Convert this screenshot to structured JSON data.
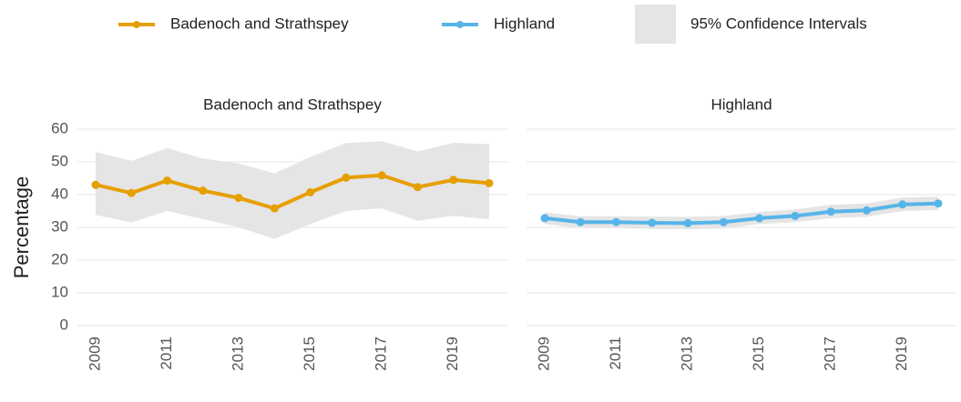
{
  "chart_data": {
    "type": "line",
    "y_label": "Percentage",
    "ci_label": "95% Confidence Intervals",
    "ci_color": "#e5e5e5",
    "x": [
      2009,
      2010,
      2011,
      2012,
      2013,
      2014,
      2015,
      2016,
      2017,
      2018,
      2019,
      2020
    ],
    "xticks": [
      2009,
      2011,
      2013,
      2015,
      2017,
      2019
    ],
    "ylim": [
      0,
      60
    ],
    "yticks": [
      0,
      10,
      20,
      30,
      40,
      50,
      60
    ],
    "grid": true,
    "facet": true,
    "series": [
      {
        "name": "Badenoch and Strathspey",
        "color": "#e69f00",
        "values": [
          43,
          40.5,
          44.3,
          41.2,
          39,
          35.8,
          40.7,
          45.2,
          45.9,
          42.3,
          44.5,
          43.5
        ],
        "ci_lower": [
          33.8,
          31.5,
          35,
          32.5,
          30,
          26.5,
          31,
          35,
          35.8,
          32,
          33.5,
          32.5
        ],
        "ci_upper": [
          53,
          50.3,
          54.2,
          51,
          49.5,
          46.5,
          51.5,
          55.8,
          56.3,
          53.2,
          55.8,
          55.4
        ]
      },
      {
        "name": "Highland",
        "color": "#56b4e9",
        "values": [
          32.8,
          31.6,
          31.6,
          31.4,
          31.3,
          31.6,
          32.8,
          33.5,
          34.8,
          35.2,
          37,
          37.3
        ],
        "ci_lower": [
          31,
          29.8,
          29.8,
          29.5,
          29.4,
          29.7,
          31,
          31.6,
          32.8,
          33.2,
          35,
          35.3
        ],
        "ci_upper": [
          34.6,
          33.4,
          33.4,
          33.3,
          33.2,
          33.5,
          34.7,
          35.5,
          36.9,
          37.3,
          39.1,
          39.4
        ]
      }
    ]
  }
}
